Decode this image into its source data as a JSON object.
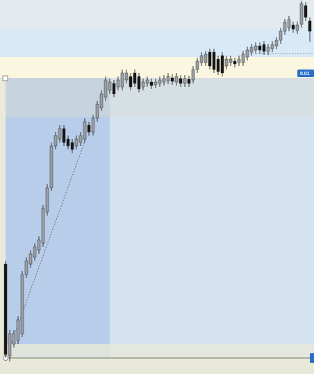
{
  "chart_data": {
    "type": "candlestick",
    "price_label": "0.01",
    "up_color": "#9a9fa7",
    "down_color": "#151515",
    "ylim": [
      0,
      538
    ],
    "open": [
      158,
      26,
      43,
      48,
      58,
      143,
      158,
      168,
      178,
      188,
      233,
      268,
      328,
      338,
      353,
      338,
      333,
      328,
      333,
      338,
      358,
      348,
      368,
      383,
      398,
      408,
      418,
      413,
      413,
      423,
      428,
      433,
      428,
      413,
      418,
      420,
      416,
      418,
      420,
      422,
      426,
      420,
      425,
      418,
      424,
      423,
      438,
      448,
      448,
      463,
      463,
      453,
      458,
      443,
      448,
      450,
      448,
      448,
      456,
      463,
      466,
      472,
      474,
      464,
      468,
      472,
      480,
      493,
      498,
      502,
      494,
      503,
      530,
      508
    ],
    "high": [
      163,
      63,
      63,
      83,
      148,
      168,
      178,
      188,
      198,
      243,
      273,
      333,
      348,
      358,
      358,
      343,
      338,
      343,
      348,
      368,
      363,
      373,
      393,
      408,
      428,
      425,
      423,
      428,
      438,
      438,
      433,
      438,
      433,
      425,
      428,
      425,
      425,
      428,
      430,
      433,
      431,
      433,
      430,
      430,
      429,
      443,
      455,
      463,
      465,
      468,
      468,
      458,
      463,
      458,
      458,
      455,
      458,
      465,
      471,
      475,
      477,
      477,
      479,
      475,
      479,
      485,
      498,
      511,
      515,
      507,
      507,
      537,
      535,
      513
    ],
    "low": [
      23,
      18,
      38,
      43,
      53,
      138,
      153,
      163,
      173,
      183,
      228,
      263,
      323,
      333,
      328,
      323,
      318,
      323,
      328,
      333,
      343,
      343,
      363,
      378,
      393,
      403,
      398,
      408,
      408,
      418,
      408,
      413,
      405,
      408,
      413,
      410,
      411,
      413,
      415,
      417,
      416,
      415,
      413,
      413,
      413,
      418,
      433,
      443,
      443,
      438,
      433,
      430,
      428,
      438,
      443,
      441,
      443,
      443,
      451,
      458,
      461,
      461,
      459,
      459,
      463,
      467,
      475,
      488,
      493,
      491,
      489,
      498,
      508,
      478
    ],
    "close": [
      28,
      58,
      58,
      78,
      143,
      163,
      173,
      183,
      193,
      238,
      268,
      328,
      343,
      353,
      333,
      328,
      323,
      338,
      343,
      363,
      348,
      368,
      388,
      403,
      423,
      420,
      403,
      423,
      433,
      433,
      413,
      418,
      410,
      420,
      423,
      415,
      420,
      423,
      425,
      428,
      421,
      428,
      418,
      425,
      418,
      438,
      450,
      458,
      460,
      443,
      438,
      435,
      433,
      453,
      453,
      446,
      453,
      460,
      466,
      470,
      472,
      466,
      464,
      470,
      474,
      480,
      493,
      506,
      510,
      496,
      502,
      533,
      513,
      493
    ]
  }
}
